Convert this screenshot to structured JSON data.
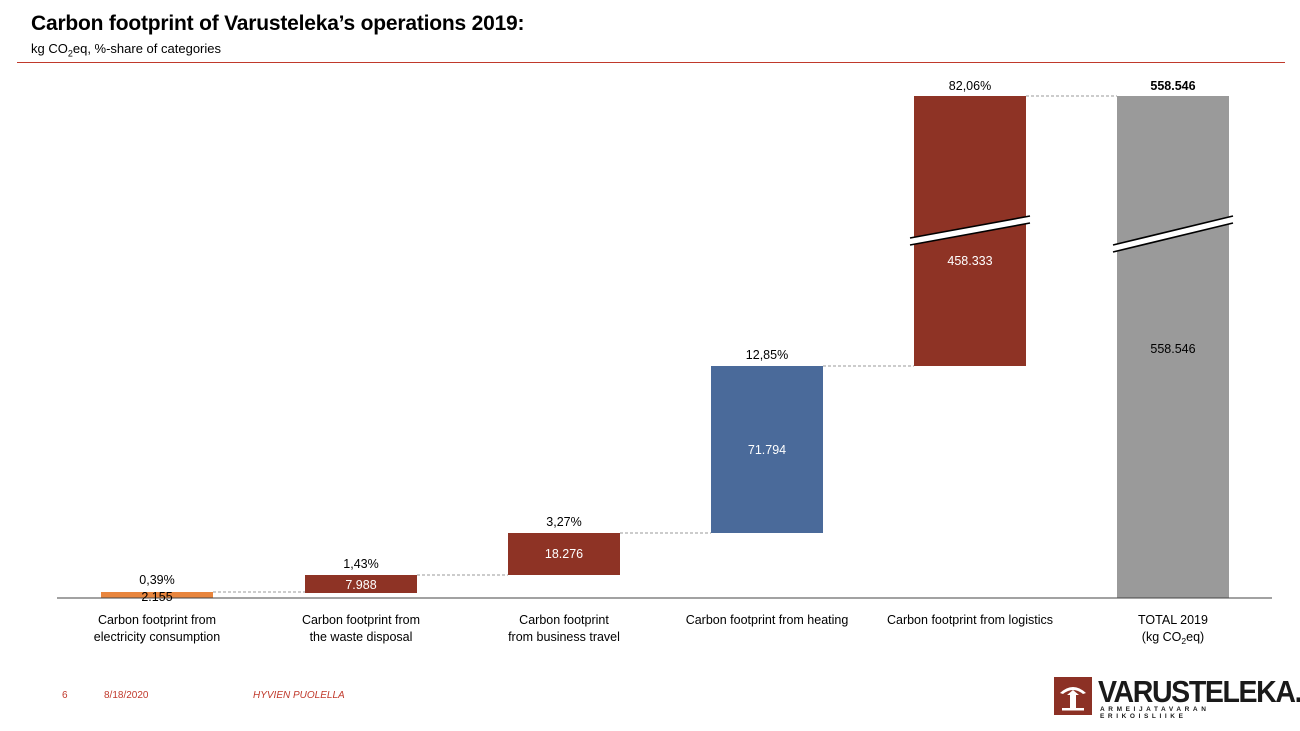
{
  "slide": {
    "title": "Carbon footprint of Varusteleka’s operations 2019:",
    "subtitle_pre": "kg CO",
    "subtitle_sub": "2",
    "subtitle_post": "eq, %-share of categories"
  },
  "footer": {
    "page": "6",
    "date": "8/18/2020",
    "tag": "HYVIEN PUOLELLA"
  },
  "logo": {
    "text": "VARUSTELEKA.FI",
    "tagline": "ARMEIJATAVARAN ERIKOISLIIKE"
  },
  "colors": {
    "electricity": "#e8853d",
    "waste": "#8e3325",
    "travel": "#8e3325",
    "heating": "#4a6a9a",
    "logistics": "#8e3325",
    "total": "#9a9a9a",
    "accent": "#c0392b"
  },
  "chart_data": {
    "type": "waterfall",
    "title": "Carbon footprint of Varusteleka’s operations 2019:",
    "unit": "kg CO2eq",
    "categories": [
      "Carbon footprint from electricity consumption",
      "Carbon footprint from the waste disposal",
      "Carbon footprint from business travel",
      "Carbon footprint from heating",
      "Carbon footprint from logistics",
      "TOTAL 2019 (kg CO2eq)"
    ],
    "category_lines": [
      [
        "Carbon footprint from",
        "electricity consumption"
      ],
      [
        "Carbon footprint from",
        "the waste disposal"
      ],
      [
        "Carbon footprint",
        "from business travel"
      ],
      [
        "Carbon footprint from heating"
      ],
      [
        "Carbon footprint from logistics"
      ],
      [
        "TOTAL 2019"
      ]
    ],
    "total_unit_line": {
      "pre": "(kg CO",
      "sub": "2",
      "post": "eq)"
    },
    "values": [
      2155,
      7988,
      18276,
      71794,
      458333,
      558546
    ],
    "value_labels": [
      "2.155",
      "7.988",
      "18.276",
      "71.794",
      "458.333",
      "558.546"
    ],
    "percent_labels": [
      "0,39%",
      "1,43%",
      "3,27%",
      "12,85%",
      "82,06%",
      ""
    ],
    "total_label": "558.546",
    "is_total": [
      false,
      false,
      false,
      false,
      false,
      true
    ],
    "axis_break": true
  }
}
